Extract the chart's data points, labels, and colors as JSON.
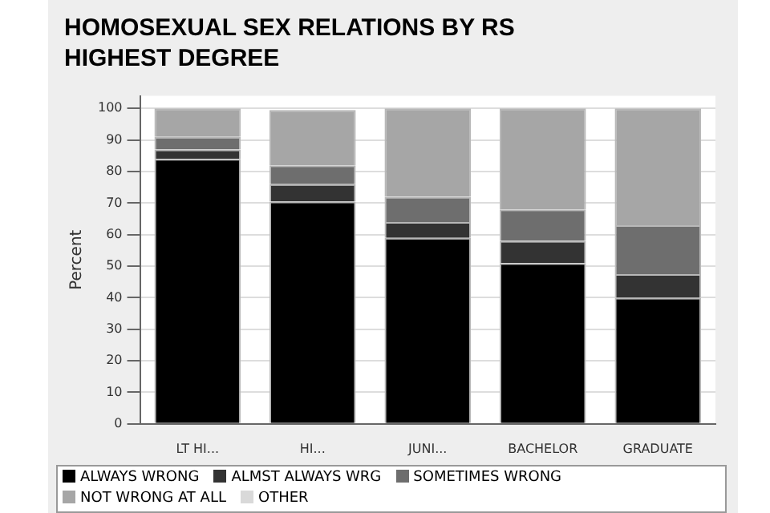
{
  "chart_data": {
    "type": "bar",
    "title": "HOMOSEXUAL SEX RELATIONS BY RS HIGHEST DEGREE",
    "ylabel": "Percent",
    "stacked": true,
    "categories": [
      "LT HI...",
      "HI...",
      "JUNI...",
      "BACHELOR",
      "GRADUATE"
    ],
    "series": [
      {
        "name": "ALWAYS WRONG",
        "color": "#000000",
        "values": [
          84,
          70.5,
          59,
          51,
          40
        ]
      },
      {
        "name": "ALMST ALWAYS WRG",
        "color": "#333333",
        "values": [
          3,
          5.5,
          5,
          7,
          7.5
        ]
      },
      {
        "name": "SOMETIMES WRONG",
        "color": "#6e6e6e",
        "values": [
          4,
          6,
          8,
          10,
          15.5
        ]
      },
      {
        "name": "NOT WRONG AT ALL",
        "color": "#a6a6a6",
        "values": [
          9,
          17.5,
          28,
          32,
          37
        ]
      },
      {
        "name": "OTHER",
        "color": "#d9d9d9",
        "values": [
          0,
          0,
          0,
          0,
          0
        ]
      }
    ],
    "ylim": [
      0,
      104
    ],
    "yticks": [
      0,
      10,
      20,
      30,
      40,
      50,
      60,
      70,
      80,
      90,
      100
    ],
    "grid": "y",
    "legend": "bottom"
  }
}
